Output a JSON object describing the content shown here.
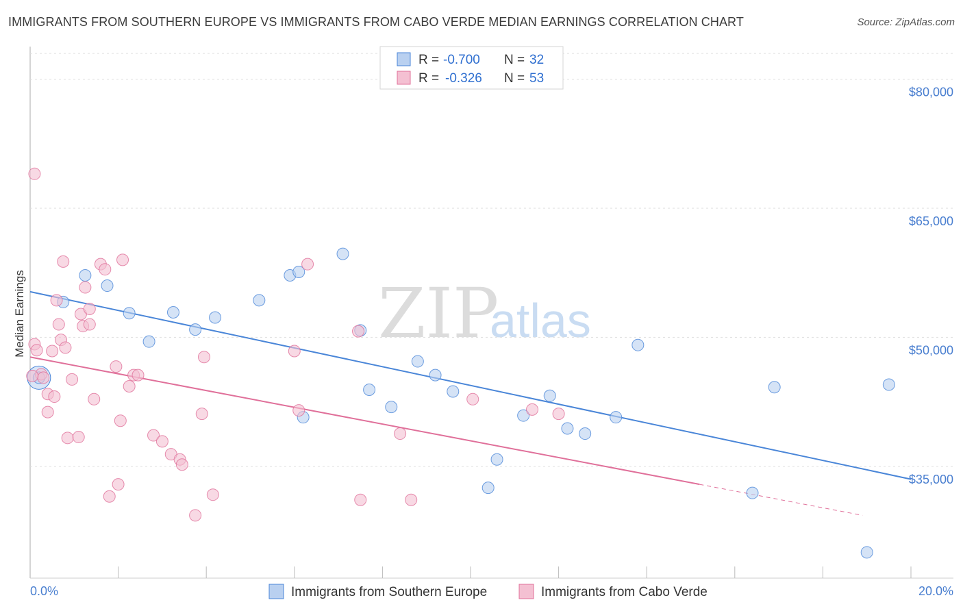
{
  "title": "IMMIGRANTS FROM SOUTHERN EUROPE VS IMMIGRANTS FROM CABO VERDE MEDIAN EARNINGS CORRELATION CHART",
  "source": "Source: ZipAtlas.com",
  "watermark": {
    "zip": "ZIP",
    "atlas": "atlas"
  },
  "colors": {
    "blue": "#4a86d8",
    "blue_fill": "#b9d0f0",
    "pink": "#e0709a",
    "pink_fill": "#f4c0d2",
    "axis_text": "#4a7fd0"
  },
  "chart_data": {
    "type": "scatter",
    "xlabel": "",
    "ylabel": "Median Earnings",
    "xlim": [
      0,
      20
    ],
    "ylim": [
      22000,
      83000
    ],
    "x_tick_labels": {
      "left": "0.0%",
      "right": "20.0%"
    },
    "y_ticks": [
      {
        "value": 35000,
        "label": "$35,000"
      },
      {
        "value": 50000,
        "label": "$50,000"
      },
      {
        "value": 65000,
        "label": "$65,000"
      },
      {
        "value": 80000,
        "label": "$80,000"
      }
    ],
    "legend_stats": [
      {
        "r_label": "R =",
        "r": "-0.700",
        "n_label": "N =",
        "n": "32"
      },
      {
        "r_label": "R =",
        "r": "-0.326",
        "n_label": "N =",
        "n": "53"
      }
    ],
    "series": [
      {
        "name": "Immigrants from Southern Europe",
        "trend": {
          "x0": 0,
          "y0": 55300,
          "x1": 20,
          "y1": 33500,
          "solid_until": 20
        },
        "points": [
          [
            0.2,
            45300
          ],
          [
            0.75,
            54100
          ],
          [
            1.25,
            57200
          ],
          [
            1.75,
            56000
          ],
          [
            2.25,
            52800
          ],
          [
            2.7,
            49500
          ],
          [
            3.25,
            52900
          ],
          [
            3.75,
            50900
          ],
          [
            4.2,
            52300
          ],
          [
            5.2,
            54300
          ],
          [
            5.9,
            57200
          ],
          [
            6.1,
            57600
          ],
          [
            6.2,
            40700
          ],
          [
            7.1,
            59700
          ],
          [
            7.5,
            50800
          ],
          [
            7.7,
            43900
          ],
          [
            8.2,
            41900
          ],
          [
            8.8,
            47200
          ],
          [
            9.2,
            45600
          ],
          [
            9.6,
            43700
          ],
          [
            10.4,
            32500
          ],
          [
            10.6,
            35800
          ],
          [
            11.2,
            40900
          ],
          [
            11.8,
            43200
          ],
          [
            12.2,
            39400
          ],
          [
            12.6,
            38800
          ],
          [
            13.3,
            40700
          ],
          [
            13.8,
            49100
          ],
          [
            16.4,
            31900
          ],
          [
            16.9,
            44200
          ],
          [
            19.0,
            25000
          ],
          [
            19.5,
            44500
          ]
        ]
      },
      {
        "name": "Immigrants from Cabo Verde",
        "trend": {
          "x0": 0,
          "y0": 47700,
          "x1": 18.9,
          "y1": 29300,
          "solid_until": 15.2
        },
        "points": [
          [
            0.1,
            49200
          ],
          [
            0.15,
            48500
          ],
          [
            0.25,
            45700
          ],
          [
            0.3,
            45300
          ],
          [
            0.4,
            43400
          ],
          [
            0.4,
            41300
          ],
          [
            0.5,
            48400
          ],
          [
            0.55,
            43100
          ],
          [
            0.6,
            54300
          ],
          [
            0.65,
            51500
          ],
          [
            0.7,
            49700
          ],
          [
            0.75,
            58800
          ],
          [
            0.8,
            48800
          ],
          [
            0.85,
            38300
          ],
          [
            0.95,
            45100
          ],
          [
            1.1,
            38400
          ],
          [
            1.15,
            52700
          ],
          [
            1.2,
            51300
          ],
          [
            1.25,
            55800
          ],
          [
            1.35,
            51500
          ],
          [
            1.35,
            53300
          ],
          [
            1.45,
            42800
          ],
          [
            1.6,
            58500
          ],
          [
            1.7,
            57900
          ],
          [
            1.8,
            31500
          ],
          [
            1.95,
            46600
          ],
          [
            2.0,
            32900
          ],
          [
            2.05,
            40300
          ],
          [
            2.1,
            59000
          ],
          [
            2.25,
            44300
          ],
          [
            2.35,
            45600
          ],
          [
            2.45,
            45600
          ],
          [
            2.8,
            38600
          ],
          [
            3.0,
            37900
          ],
          [
            3.2,
            36400
          ],
          [
            3.4,
            35800
          ],
          [
            3.45,
            35200
          ],
          [
            3.75,
            29300
          ],
          [
            3.9,
            41100
          ],
          [
            3.95,
            47700
          ],
          [
            4.15,
            31700
          ],
          [
            6.0,
            48400
          ],
          [
            6.1,
            41500
          ],
          [
            6.3,
            58500
          ],
          [
            7.45,
            50700
          ],
          [
            7.5,
            31100
          ],
          [
            8.4,
            38800
          ],
          [
            8.65,
            31100
          ],
          [
            10.05,
            42800
          ],
          [
            11.4,
            41600
          ],
          [
            12.0,
            41100
          ],
          [
            0.1,
            69000
          ],
          [
            0.05,
            45500
          ]
        ]
      }
    ]
  },
  "bottom_legend": [
    "Immigrants from Southern Europe",
    "Immigrants from Cabo Verde"
  ]
}
